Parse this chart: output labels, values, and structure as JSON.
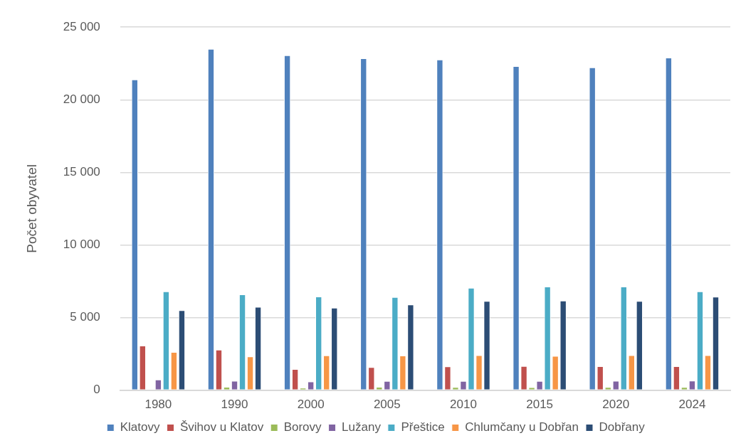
{
  "chart_data": {
    "type": "bar",
    "ylabel": "Počet obyvatel",
    "categories": [
      "1980",
      "1990",
      "2000",
      "2005",
      "2010",
      "2015",
      "2020",
      "2024"
    ],
    "series": [
      {
        "name": "Klatovy",
        "color": "#4f81bd",
        "values": [
          21400,
          23500,
          23060,
          22850,
          22770,
          22320,
          22230,
          22900
        ]
      },
      {
        "name": "Švihov u Klatov",
        "color": "#c0504d",
        "values": [
          3070,
          2790,
          1450,
          1590,
          1630,
          1660,
          1640,
          1640
        ]
      },
      {
        "name": "Borovy",
        "color": "#9bbb59",
        "values": [
          0,
          230,
          160,
          230,
          210,
          200,
          210,
          210
        ]
      },
      {
        "name": "Lužany",
        "color": "#8064a2",
        "values": [
          730,
          640,
          590,
          630,
          630,
          630,
          640,
          660
        ]
      },
      {
        "name": "Přeštice",
        "color": "#4bacc6",
        "values": [
          6800,
          6590,
          6450,
          6410,
          7050,
          7130,
          7130,
          6800
        ]
      },
      {
        "name": "Chlumčany u Dobřan",
        "color": "#f79646",
        "values": [
          2620,
          2320,
          2390,
          2380,
          2410,
          2360,
          2410,
          2410
        ]
      },
      {
        "name": "Dobřany",
        "color": "#2c4d75",
        "values": [
          5500,
          5730,
          5680,
          5890,
          6140,
          6160,
          6140,
          6430
        ]
      }
    ],
    "ylim": [
      0,
      25000
    ],
    "yticks": [
      {
        "value": 0,
        "label": "0"
      },
      {
        "value": 5000,
        "label": "5 000"
      },
      {
        "value": 10000,
        "label": "10 000"
      },
      {
        "value": 15000,
        "label": "15 000"
      },
      {
        "value": 20000,
        "label": "20 000"
      },
      {
        "value": 25000,
        "label": "25 000"
      }
    ],
    "grid": "y",
    "legend": "bottom"
  }
}
